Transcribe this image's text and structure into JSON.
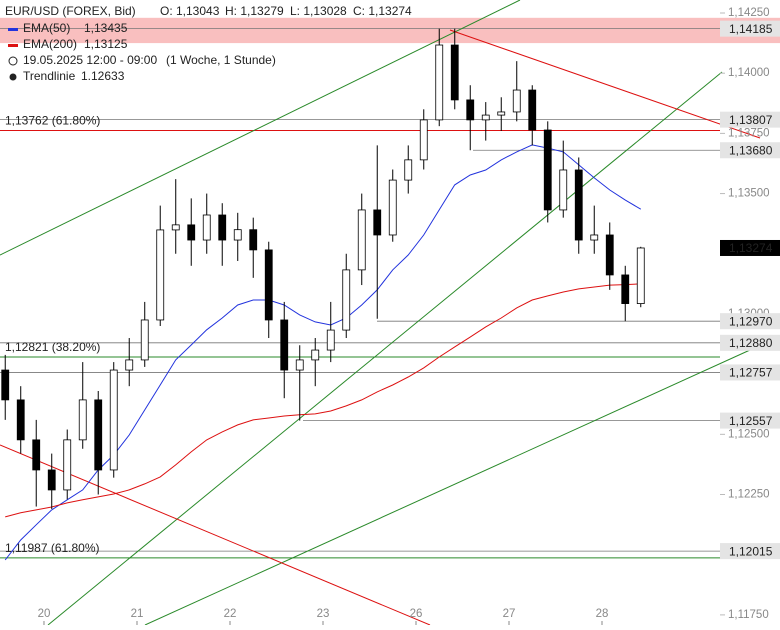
{
  "header": {
    "symbol": "EUR/USD (FOREX, Bid)",
    "open": "O: 1,13043",
    "high": "H: 1,13279",
    "low": "L: 1,13028",
    "close": "C: 1,13274",
    "ema50": {
      "name": "EMA(50)",
      "value": "1,13435"
    },
    "ema200": {
      "name": "EMA(200)",
      "value": "1,13125"
    },
    "period": "19.05.2025 12:00 - 09:00",
    "interval": "(1 Woche, 1 Stunde)",
    "trend": {
      "name": "Trendlinie",
      "value": "1.12633"
    }
  },
  "chart_data": {
    "type": "candlestick",
    "x": [
      -10,
      -6,
      -2,
      2,
      6,
      10,
      14,
      18,
      22,
      26,
      30,
      34,
      38,
      42,
      46,
      50,
      54,
      58,
      62,
      66,
      70,
      74,
      78,
      82,
      86,
      90,
      94,
      98,
      102,
      106,
      110,
      114,
      118,
      122,
      126,
      130,
      134,
      138,
      142,
      146,
      150,
      154
    ],
    "open": [
      1.12767,
      1.12643,
      1.12477,
      1.12352,
      1.12269,
      1.12477,
      1.12643,
      1.12352,
      1.12767,
      1.12809,
      1.12975,
      1.13349,
      1.1337,
      1.13307,
      1.13411,
      1.13307,
      1.1335,
      1.13266,
      1.12975,
      1.12767,
      1.12809,
      1.1285,
      1.12933,
      1.13183,
      1.13432,
      1.13328,
      1.13556,
      1.1364,
      1.13806,
      1.14117,
      1.13889,
      1.13806,
      1.13826,
      1.13839,
      1.1393,
      1.13764,
      1.13432,
      1.13598,
      1.13307,
      1.13328,
      1.13162,
      1.13043
    ],
    "high": [
      1.1283,
      1.127,
      1.1256,
      1.1242,
      1.1252,
      1.128,
      1.1268,
      1.128,
      1.129,
      1.1305,
      1.1345,
      1.1356,
      1.1348,
      1.135,
      1.1346,
      1.1342,
      1.134,
      1.133,
      1.1305,
      1.1287,
      1.129,
      1.1305,
      1.1325,
      1.135,
      1.137,
      1.136,
      1.137,
      1.1385,
      1.14185,
      1.14185,
      1.1395,
      1.1388,
      1.139,
      1.1405,
      1.1395,
      1.138,
      1.1372,
      1.1365,
      1.1345,
      1.1338,
      1.132,
      1.13279
    ],
    "low": [
      1.1256,
      1.1242,
      1.122,
      1.1219,
      1.1223,
      1.1244,
      1.1225,
      1.1232,
      1.127,
      1.1278,
      1.1295,
      1.1325,
      1.132,
      1.1325,
      1.132,
      1.1322,
      1.1315,
      1.129,
      1.1265,
      1.12557,
      1.127,
      1.128,
      1.129,
      1.1312,
      1.1298,
      1.133,
      1.135,
      1.136,
      1.1378,
      1.1385,
      1.1368,
      1.1372,
      1.1376,
      1.138,
      1.137,
      1.1338,
      1.134,
      1.1325,
      1.1325,
      1.131,
      1.1297,
      1.13028
    ],
    "close": [
      1.12643,
      1.12477,
      1.12352,
      1.12269,
      1.12477,
      1.12643,
      1.12352,
      1.12767,
      1.12809,
      1.12975,
      1.13349,
      1.1337,
      1.13307,
      1.13411,
      1.13307,
      1.1335,
      1.13266,
      1.12975,
      1.12767,
      1.12809,
      1.1285,
      1.12933,
      1.13183,
      1.13432,
      1.13328,
      1.13556,
      1.1364,
      1.13806,
      1.14117,
      1.13889,
      1.13806,
      1.13826,
      1.13839,
      1.1393,
      1.13764,
      1.13432,
      1.13598,
      1.13307,
      1.13328,
      1.13162,
      1.13043,
      1.13274
    ],
    "series": [
      {
        "name": "EMA(50)",
        "color": "#2233dd",
        "values": [
          1.11978,
          1.12061,
          1.12124,
          1.12186,
          1.12228,
          1.12269,
          1.12352,
          1.12414,
          1.12497,
          1.12601,
          1.12705,
          1.12809,
          1.12871,
          1.12934,
          1.12983,
          1.13037,
          1.13058,
          1.13058,
          1.13037,
          1.12996,
          1.12967,
          1.12954,
          1.12983,
          1.13037,
          1.131,
          1.13183,
          1.13245,
          1.13328,
          1.13432,
          1.13536,
          1.13577,
          1.13598,
          1.1364,
          1.13673,
          1.13702,
          1.13689,
          1.13673,
          1.13619,
          1.13565,
          1.13515,
          1.13473,
          1.13435
        ]
      },
      {
        "name": "EMA(200)",
        "color": "#dd1111",
        "values": [
          1.12157,
          1.12174,
          1.12186,
          1.12198,
          1.12215,
          1.12228,
          1.1224,
          1.12252,
          1.12269,
          1.12294,
          1.12323,
          1.12373,
          1.12427,
          1.12477,
          1.1251,
          1.12539,
          1.1256,
          1.12568,
          1.12576,
          1.12581,
          1.12585,
          1.12597,
          1.12618,
          1.12643,
          1.12676,
          1.12705,
          1.12738,
          1.12776,
          1.12821,
          1.12863,
          1.12904,
          1.12946,
          1.12983,
          1.13025,
          1.13058,
          1.13075,
          1.13091,
          1.13104,
          1.13112,
          1.1312,
          1.13122,
          1.13125
        ]
      }
    ],
    "xlim": [
      -11.35,
      174.45
    ],
    "xticks": [
      {
        "value": 0,
        "label": "20"
      },
      {
        "value": 24,
        "label": "21"
      },
      {
        "value": 48,
        "label": "22"
      },
      {
        "value": 72,
        "label": "23"
      },
      {
        "value": 96,
        "label": "26"
      },
      {
        "value": 120,
        "label": "27"
      },
      {
        "value": 144,
        "label": "28"
      }
    ],
    "ylim": [
      1.11708,
      1.14304
    ],
    "yticks": [
      {
        "value": 1.1425,
        "label": "1,14250"
      },
      {
        "value": 1.14,
        "label": "1,14000"
      },
      {
        "value": 1.1375,
        "label": "1,13750"
      },
      {
        "value": 1.135,
        "label": "1,13500"
      },
      {
        "value": 1.13,
        "label": "1,13000"
      },
      {
        "value": 1.125,
        "label": "1,12500"
      },
      {
        "value": 1.1225,
        "label": "1,12250"
      },
      {
        "value": 1.1175,
        "label": "1,11750"
      }
    ],
    "zone": [
      1.14125,
      1.1423
    ],
    "levels": [
      {
        "value": 1.14185,
        "label": "1,14185"
      },
      {
        "value": 1.13807,
        "label": "1,13807"
      },
      {
        "value": 1.1368,
        "label": "1,13680"
      },
      {
        "value": 1.1297,
        "label": "1,12970"
      },
      {
        "value": 1.1288,
        "label": "1,12880"
      },
      {
        "value": 1.12757,
        "label": "1,12757"
      },
      {
        "value": 1.12557,
        "label": "1,12557"
      },
      {
        "value": 1.12015,
        "label": "1,12015"
      }
    ],
    "current": {
      "value": 1.13274,
      "label": "1,13274"
    },
    "fibs": [
      {
        "value": 1.13762,
        "label": "1,13762 (61.80%)",
        "color": "#dd1111"
      },
      {
        "value": 1.12821,
        "label": "1,12821 (38.20%)",
        "color": "#2a8a2a"
      },
      {
        "value": 1.11987,
        "label": "1,11987 (61.80%)",
        "color": "#2a8a2a"
      }
    ]
  }
}
